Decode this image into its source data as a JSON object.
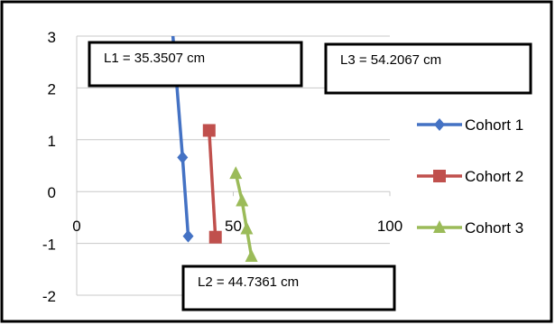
{
  "chart_data": {
    "type": "scatter",
    "title": "",
    "xlabel": "",
    "ylabel": "",
    "xlim": [
      0,
      100
    ],
    "ylim": [
      -2,
      3
    ],
    "x_ticks": [
      0,
      50,
      100
    ],
    "y_ticks": [
      3,
      2,
      1,
      0,
      -1,
      -2
    ],
    "grid": "horizontal",
    "legend_position": "right",
    "series": [
      {
        "name": "Cohort 1",
        "color": "#4472C4",
        "marker": "diamond",
        "x": [
          30.6,
          33.8,
          35.6
        ],
        "y": [
          3.1,
          0.66,
          -0.86
        ]
      },
      {
        "name": "Cohort 2",
        "color": "#C0504D",
        "marker": "square",
        "x": [
          42.3,
          44.3
        ],
        "y": [
          1.18,
          -0.88
        ]
      },
      {
        "name": "Cohort 3",
        "color": "#9BBB59",
        "marker": "triangle",
        "x": [
          50.8,
          52.8,
          54.3,
          55.8
        ],
        "y": [
          0.35,
          -0.18,
          -0.72,
          -1.25
        ]
      }
    ],
    "annotations": [
      {
        "id": "l1",
        "text": "L1 = 35.3507 cm"
      },
      {
        "id": "l2",
        "text": "L2 = 44.7361 cm"
      },
      {
        "id": "l3",
        "text": "L3 = 54.2067 cm"
      }
    ]
  }
}
